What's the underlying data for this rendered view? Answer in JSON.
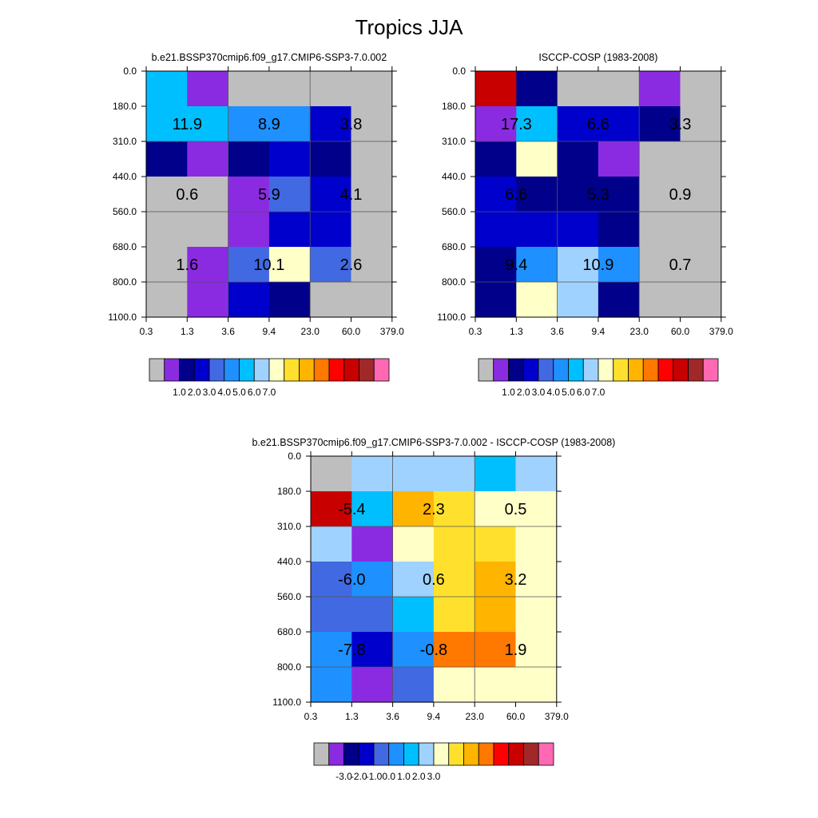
{
  "title": "Tropics JJA",
  "chart_data": [
    {
      "type": "heatmap",
      "title": "b.e21.BSSP370cmip6.f09_g17.CMIP6-SSP3-7.0.002",
      "x_ticks": [
        "0.3",
        "1.3",
        "3.6",
        "9.4",
        "23.0",
        "60.0",
        "379.0"
      ],
      "y_ticks": [
        "0.0",
        "180.0",
        "310.0",
        "440.0",
        "560.0",
        "680.0",
        "800.0",
        "1100.0"
      ],
      "cell_colors": [
        [
          "#00bfff",
          "#8a2be2",
          "#bebebe",
          "#bebebe",
          "#bebebe",
          "#bebebe"
        ],
        [
          "#00bfff",
          "#00bfff",
          "#1e90ff",
          "#1e90ff",
          "#0000cd",
          "#bebebe"
        ],
        [
          "#00008b",
          "#8a2be2",
          "#00008b",
          "#0000cd",
          "#00008b",
          "#bebebe"
        ],
        [
          "#bebebe",
          "#bebebe",
          "#8a2be2",
          "#4169e1",
          "#0000cd",
          "#bebebe"
        ],
        [
          "#bebebe",
          "#bebebe",
          "#8a2be2",
          "#0000cd",
          "#0000cd",
          "#bebebe"
        ],
        [
          "#bebebe",
          "#8a2be2",
          "#4169e1",
          "#ffffc8",
          "#4169e1",
          "#bebebe"
        ],
        [
          "#bebebe",
          "#8a2be2",
          "#0000cd",
          "#00008b",
          "#bebebe",
          "#bebebe"
        ]
      ],
      "annotations": [
        {
          "row": 0,
          "col": 0,
          "text": "11.9"
        },
        {
          "row": 0,
          "col": 1,
          "text": "8.9"
        },
        {
          "row": 0,
          "col": 2,
          "text": "3.8"
        },
        {
          "row": 1,
          "col": 0,
          "text": "0.6"
        },
        {
          "row": 1,
          "col": 1,
          "text": "5.9"
        },
        {
          "row": 1,
          "col": 2,
          "text": "4.1"
        },
        {
          "row": 2,
          "col": 0,
          "text": "1.6"
        },
        {
          "row": 2,
          "col": 1,
          "text": "10.1"
        },
        {
          "row": 2,
          "col": 2,
          "text": "2.6"
        }
      ],
      "colorbar": {
        "colors": [
          "#bebebe",
          "#8a2be2",
          "#00008b",
          "#0000cd",
          "#4169e1",
          "#1e90ff",
          "#00bfff",
          "#a0d2ff",
          "#ffffc8",
          "#ffe12d",
          "#ffb400",
          "#ff7800",
          "#ff0000",
          "#c80000",
          "#a02828",
          "#ff69b4"
        ],
        "labels": [
          "1.0",
          "2.0",
          "3.0",
          "4.0",
          "5.0",
          "6.0",
          "7.0"
        ]
      }
    },
    {
      "type": "heatmap",
      "title": "ISCCP-COSP (1983-2008)",
      "x_ticks": [
        "0.3",
        "1.3",
        "3.6",
        "9.4",
        "23.0",
        "60.0",
        "379.0"
      ],
      "y_ticks": [
        "0.0",
        "180.0",
        "310.0",
        "440.0",
        "560.0",
        "680.0",
        "800.0",
        "1100.0"
      ],
      "cell_colors": [
        [
          "#c80000",
          "#00008b",
          "#bebebe",
          "#bebebe",
          "#8a2be2",
          "#bebebe"
        ],
        [
          "#8a2be2",
          "#00bfff",
          "#0000cd",
          "#0000cd",
          "#00008b",
          "#bebebe"
        ],
        [
          "#00008b",
          "#ffffc8",
          "#00008b",
          "#8a2be2",
          "#bebebe",
          "#bebebe"
        ],
        [
          "#0000cd",
          "#00008b",
          "#00008b",
          "#00008b",
          "#bebebe",
          "#bebebe"
        ],
        [
          "#0000cd",
          "#0000cd",
          "#0000cd",
          "#00008b",
          "#bebebe",
          "#bebebe"
        ],
        [
          "#00008b",
          "#1e90ff",
          "#a0d2ff",
          "#1e90ff",
          "#bebebe",
          "#bebebe"
        ],
        [
          "#00008b",
          "#ffffc8",
          "#a0d2ff",
          "#00008b",
          "#bebebe",
          "#bebebe"
        ]
      ],
      "annotations": [
        {
          "row": 0,
          "col": 0,
          "text": "17.3"
        },
        {
          "row": 0,
          "col": 1,
          "text": "6.6"
        },
        {
          "row": 0,
          "col": 2,
          "text": "3.3"
        },
        {
          "row": 1,
          "col": 0,
          "text": "6.6"
        },
        {
          "row": 1,
          "col": 1,
          "text": "5.3"
        },
        {
          "row": 1,
          "col": 2,
          "text": "0.9"
        },
        {
          "row": 2,
          "col": 0,
          "text": "9.4"
        },
        {
          "row": 2,
          "col": 1,
          "text": "10.9"
        },
        {
          "row": 2,
          "col": 2,
          "text": "0.7"
        }
      ],
      "colorbar": {
        "colors": [
          "#bebebe",
          "#8a2be2",
          "#00008b",
          "#0000cd",
          "#4169e1",
          "#1e90ff",
          "#00bfff",
          "#a0d2ff",
          "#ffffc8",
          "#ffe12d",
          "#ffb400",
          "#ff7800",
          "#ff0000",
          "#c80000",
          "#a02828",
          "#ff69b4"
        ],
        "labels": [
          "1.0",
          "2.0",
          "3.0",
          "4.0",
          "5.0",
          "6.0",
          "7.0"
        ]
      }
    },
    {
      "type": "heatmap",
      "title": "b.e21.BSSP370cmip6.f09_g17.CMIP6-SSP3-7.0.002 - ISCCP-COSP (1983-2008)",
      "x_ticks": [
        "0.3",
        "1.3",
        "3.6",
        "9.4",
        "23.0",
        "60.0",
        "379.0"
      ],
      "y_ticks": [
        "0.0",
        "180.0",
        "310.0",
        "440.0",
        "560.0",
        "680.0",
        "800.0",
        "1100.0"
      ],
      "cell_colors": [
        [
          "#bebebe",
          "#a0d2ff",
          "#a0d2ff",
          "#a0d2ff",
          "#00bfff",
          "#a0d2ff"
        ],
        [
          "#c80000",
          "#00bfff",
          "#ffb400",
          "#ffe12d",
          "#ffffc8",
          "#ffffc8"
        ],
        [
          "#a0d2ff",
          "#8a2be2",
          "#ffffc8",
          "#ffe12d",
          "#ffe12d",
          "#ffffc8"
        ],
        [
          "#4169e1",
          "#1e90ff",
          "#a0d2ff",
          "#ffe12d",
          "#ffb400",
          "#ffffc8"
        ],
        [
          "#4169e1",
          "#4169e1",
          "#00bfff",
          "#ffe12d",
          "#ffb400",
          "#ffffc8"
        ],
        [
          "#1e90ff",
          "#0000cd",
          "#1e90ff",
          "#ff7800",
          "#ff7800",
          "#ffffc8"
        ],
        [
          "#1e90ff",
          "#8a2be2",
          "#4169e1",
          "#ffffc8",
          "#ffffc8",
          "#ffffc8"
        ]
      ],
      "annotations": [
        {
          "row": 0,
          "col": 0,
          "text": "-5.4"
        },
        {
          "row": 0,
          "col": 1,
          "text": "2.3"
        },
        {
          "row": 0,
          "col": 2,
          "text": "0.5"
        },
        {
          "row": 1,
          "col": 0,
          "text": "-6.0"
        },
        {
          "row": 1,
          "col": 1,
          "text": "0.6"
        },
        {
          "row": 1,
          "col": 2,
          "text": "3.2"
        },
        {
          "row": 2,
          "col": 0,
          "text": "-7.8"
        },
        {
          "row": 2,
          "col": 1,
          "text": "-0.8"
        },
        {
          "row": 2,
          "col": 2,
          "text": "1.9"
        }
      ],
      "colorbar": {
        "colors": [
          "#bebebe",
          "#8a2be2",
          "#00008b",
          "#0000cd",
          "#4169e1",
          "#1e90ff",
          "#00bfff",
          "#a0d2ff",
          "#ffffc8",
          "#ffe12d",
          "#ffb400",
          "#ff7800",
          "#ff0000",
          "#c80000",
          "#a02828",
          "#ff69b4"
        ],
        "labels": [
          "-3.0",
          "-2.0",
          "-1.0",
          "0.0",
          "1.0",
          "2.0",
          "3.0"
        ]
      }
    }
  ]
}
